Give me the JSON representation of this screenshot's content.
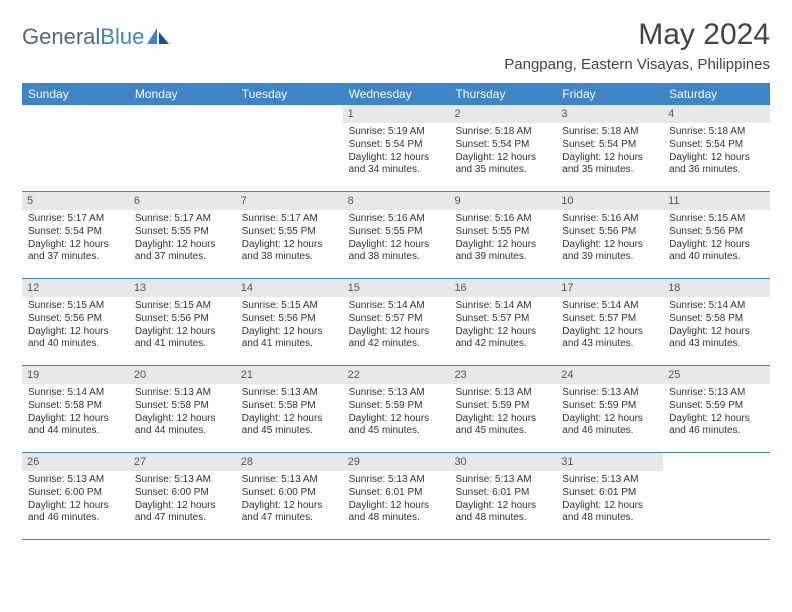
{
  "brand": {
    "first": "General",
    "second": "Blue"
  },
  "title": "May 2024",
  "location": "Pangpang, Eastern Visayas, Philippines",
  "colors": {
    "headerBlue": "#3d85c6",
    "dayNumBg": "#e8e8e8",
    "textDark": "#333333",
    "textGrey": "#555555",
    "brandGrey": "#5c6670"
  },
  "weekdays": [
    "Sunday",
    "Monday",
    "Tuesday",
    "Wednesday",
    "Thursday",
    "Friday",
    "Saturday"
  ],
  "weeks": [
    [
      {
        "empty": true
      },
      {
        "empty": true
      },
      {
        "empty": true
      },
      {
        "num": "1",
        "sunrise": "5:19 AM",
        "sunset": "5:54 PM",
        "daylight": "12 hours and 34 minutes."
      },
      {
        "num": "2",
        "sunrise": "5:18 AM",
        "sunset": "5:54 PM",
        "daylight": "12 hours and 35 minutes."
      },
      {
        "num": "3",
        "sunrise": "5:18 AM",
        "sunset": "5:54 PM",
        "daylight": "12 hours and 35 minutes."
      },
      {
        "num": "4",
        "sunrise": "5:18 AM",
        "sunset": "5:54 PM",
        "daylight": "12 hours and 36 minutes."
      }
    ],
    [
      {
        "num": "5",
        "sunrise": "5:17 AM",
        "sunset": "5:54 PM",
        "daylight": "12 hours and 37 minutes."
      },
      {
        "num": "6",
        "sunrise": "5:17 AM",
        "sunset": "5:55 PM",
        "daylight": "12 hours and 37 minutes."
      },
      {
        "num": "7",
        "sunrise": "5:17 AM",
        "sunset": "5:55 PM",
        "daylight": "12 hours and 38 minutes."
      },
      {
        "num": "8",
        "sunrise": "5:16 AM",
        "sunset": "5:55 PM",
        "daylight": "12 hours and 38 minutes."
      },
      {
        "num": "9",
        "sunrise": "5:16 AM",
        "sunset": "5:55 PM",
        "daylight": "12 hours and 39 minutes."
      },
      {
        "num": "10",
        "sunrise": "5:16 AM",
        "sunset": "5:56 PM",
        "daylight": "12 hours and 39 minutes."
      },
      {
        "num": "11",
        "sunrise": "5:15 AM",
        "sunset": "5:56 PM",
        "daylight": "12 hours and 40 minutes."
      }
    ],
    [
      {
        "num": "12",
        "sunrise": "5:15 AM",
        "sunset": "5:56 PM",
        "daylight": "12 hours and 40 minutes."
      },
      {
        "num": "13",
        "sunrise": "5:15 AM",
        "sunset": "5:56 PM",
        "daylight": "12 hours and 41 minutes."
      },
      {
        "num": "14",
        "sunrise": "5:15 AM",
        "sunset": "5:56 PM",
        "daylight": "12 hours and 41 minutes."
      },
      {
        "num": "15",
        "sunrise": "5:14 AM",
        "sunset": "5:57 PM",
        "daylight": "12 hours and 42 minutes."
      },
      {
        "num": "16",
        "sunrise": "5:14 AM",
        "sunset": "5:57 PM",
        "daylight": "12 hours and 42 minutes."
      },
      {
        "num": "17",
        "sunrise": "5:14 AM",
        "sunset": "5:57 PM",
        "daylight": "12 hours and 43 minutes."
      },
      {
        "num": "18",
        "sunrise": "5:14 AM",
        "sunset": "5:58 PM",
        "daylight": "12 hours and 43 minutes."
      }
    ],
    [
      {
        "num": "19",
        "sunrise": "5:14 AM",
        "sunset": "5:58 PM",
        "daylight": "12 hours and 44 minutes."
      },
      {
        "num": "20",
        "sunrise": "5:13 AM",
        "sunset": "5:58 PM",
        "daylight": "12 hours and 44 minutes."
      },
      {
        "num": "21",
        "sunrise": "5:13 AM",
        "sunset": "5:58 PM",
        "daylight": "12 hours and 45 minutes."
      },
      {
        "num": "22",
        "sunrise": "5:13 AM",
        "sunset": "5:59 PM",
        "daylight": "12 hours and 45 minutes."
      },
      {
        "num": "23",
        "sunrise": "5:13 AM",
        "sunset": "5:59 PM",
        "daylight": "12 hours and 45 minutes."
      },
      {
        "num": "24",
        "sunrise": "5:13 AM",
        "sunset": "5:59 PM",
        "daylight": "12 hours and 46 minutes."
      },
      {
        "num": "25",
        "sunrise": "5:13 AM",
        "sunset": "5:59 PM",
        "daylight": "12 hours and 46 minutes."
      }
    ],
    [
      {
        "num": "26",
        "sunrise": "5:13 AM",
        "sunset": "6:00 PM",
        "daylight": "12 hours and 46 minutes."
      },
      {
        "num": "27",
        "sunrise": "5:13 AM",
        "sunset": "6:00 PM",
        "daylight": "12 hours and 47 minutes."
      },
      {
        "num": "28",
        "sunrise": "5:13 AM",
        "sunset": "6:00 PM",
        "daylight": "12 hours and 47 minutes."
      },
      {
        "num": "29",
        "sunrise": "5:13 AM",
        "sunset": "6:01 PM",
        "daylight": "12 hours and 48 minutes."
      },
      {
        "num": "30",
        "sunrise": "5:13 AM",
        "sunset": "6:01 PM",
        "daylight": "12 hours and 48 minutes."
      },
      {
        "num": "31",
        "sunrise": "5:13 AM",
        "sunset": "6:01 PM",
        "daylight": "12 hours and 48 minutes."
      },
      {
        "empty": true
      }
    ]
  ],
  "labels": {
    "sunrise": "Sunrise: ",
    "sunset": "Sunset: ",
    "daylight": "Daylight: "
  }
}
